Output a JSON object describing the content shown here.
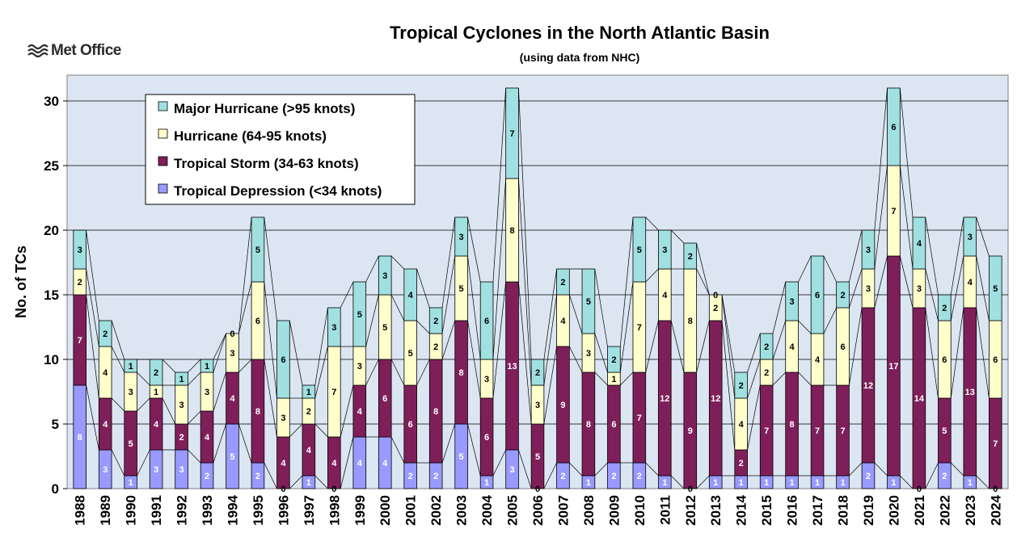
{
  "logo_text": "Met Office",
  "chart_data": {
    "type": "bar",
    "stacked": true,
    "title": "Tropical Cyclones in the North Atlantic Basin",
    "subtitle": "(using data from NHC)",
    "xlabel": "",
    "ylabel": "No. of TCs",
    "ylim": [
      0,
      32
    ],
    "yticks": [
      0,
      5,
      10,
      15,
      20,
      25,
      30
    ],
    "grid": true,
    "legend_position": "top-left",
    "background_color": "#dce6f2",
    "categories": [
      "1988",
      "1989",
      "1990",
      "1991",
      "1992",
      "1993",
      "1994",
      "1995",
      "1996",
      "1997",
      "1998",
      "1999",
      "2000",
      "2001",
      "2002",
      "2003",
      "2004",
      "2005",
      "2006",
      "2007",
      "2008",
      "2009",
      "2010",
      "2011",
      "2012",
      "2013",
      "2014",
      "2015",
      "2016",
      "2017",
      "2018",
      "2019",
      "2020",
      "2021",
      "2022",
      "2023",
      "2024"
    ],
    "series": [
      {
        "name": "Tropical Depression (<34 knots)",
        "color": "#9999ff",
        "label_color": "#ffffff",
        "values": [
          8,
          3,
          1,
          3,
          3,
          2,
          5,
          2,
          0,
          1,
          0,
          4,
          4,
          2,
          2,
          5,
          1,
          3,
          0,
          2,
          1,
          2,
          2,
          1,
          0,
          1,
          1,
          1,
          1,
          1,
          1,
          2,
          1,
          0,
          2,
          1,
          0
        ]
      },
      {
        "name": "Tropical Storm (34-63 knots)",
        "color": "#7f1f5a",
        "label_color": "#ffffff",
        "values": [
          7,
          4,
          5,
          4,
          2,
          4,
          4,
          8,
          4,
          4,
          4,
          4,
          6,
          6,
          8,
          8,
          6,
          13,
          5,
          9,
          8,
          6,
          7,
          12,
          9,
          12,
          2,
          7,
          8,
          7,
          7,
          12,
          17,
          14,
          5,
          13,
          7
        ]
      },
      {
        "name": "Hurricane (64-95 knots)",
        "color": "#ffffcc",
        "label_color": "#000000",
        "values": [
          2,
          4,
          3,
          1,
          3,
          3,
          3,
          6,
          3,
          2,
          7,
          3,
          5,
          5,
          2,
          5,
          3,
          8,
          3,
          4,
          3,
          1,
          7,
          4,
          8,
          2,
          4,
          2,
          4,
          4,
          6,
          3,
          7,
          3,
          6,
          4,
          6
        ]
      },
      {
        "name": "Major Hurricane (>95 knots)",
        "color": "#a0e0e0",
        "label_color": "#000000",
        "values": [
          3,
          2,
          1,
          2,
          1,
          1,
          0,
          5,
          6,
          1,
          3,
          5,
          3,
          4,
          2,
          3,
          6,
          7,
          2,
          2,
          5,
          2,
          5,
          3,
          2,
          0,
          2,
          2,
          3,
          6,
          2,
          3,
          6,
          4,
          2,
          3,
          5
        ]
      }
    ]
  }
}
